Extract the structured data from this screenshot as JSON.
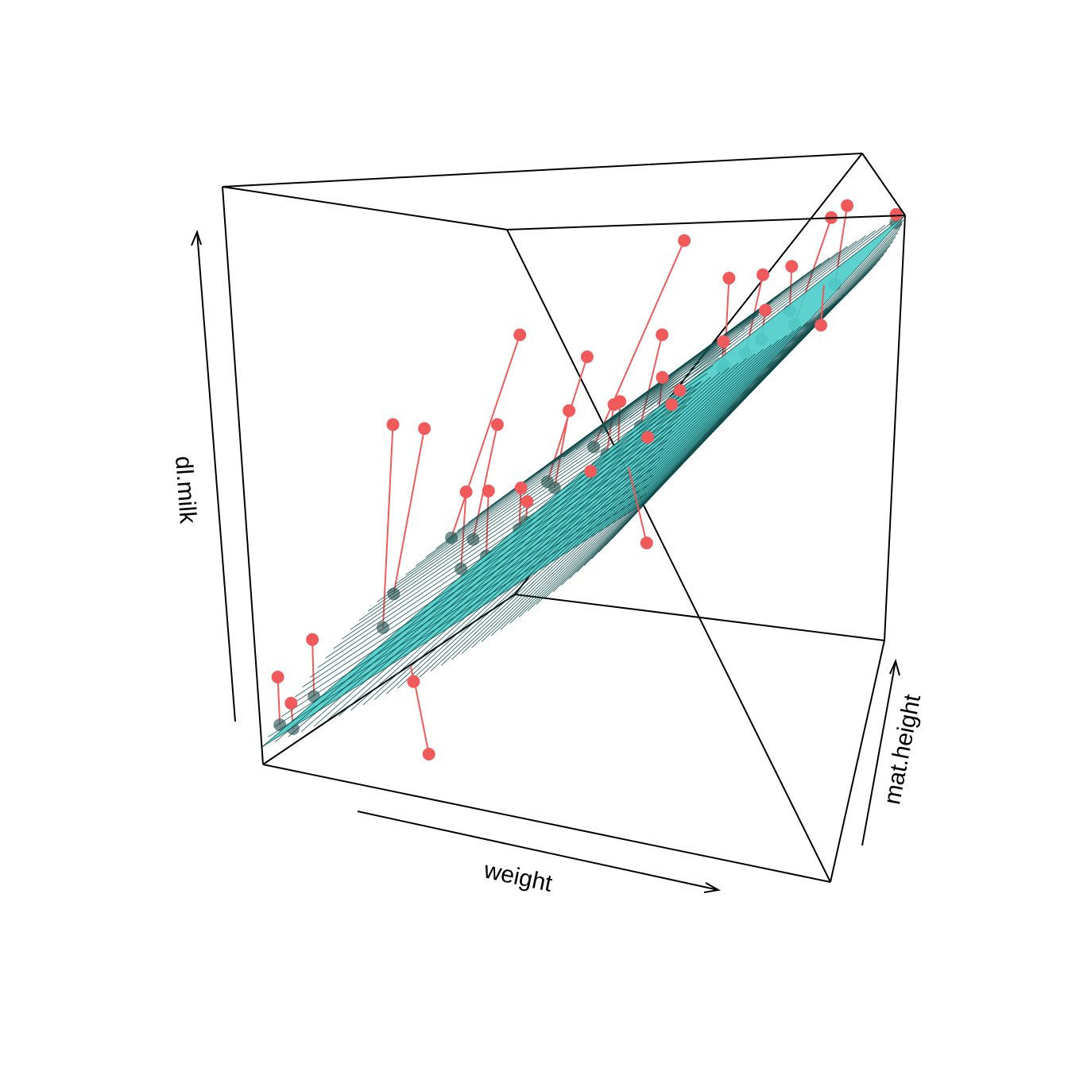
{
  "chart_data": {
    "type": "scatter",
    "subtype": "3d-scatter-with-regression-plane",
    "title": "",
    "xlabel": "weight",
    "ylabel": "mat.height",
    "zlabel": "dl.milk",
    "normalized_axes": true,
    "plane": {
      "a": 0.03,
      "bx": 0.55,
      "by": 0.42,
      "color": "#4ECDCA",
      "mesh_color": "#0E4A4A",
      "mesh_divisions": 40
    },
    "point_color": "#F15A5A",
    "shadow_color": "#4A6E6A",
    "points": [
      {
        "x": 0.98,
        "y": 0.98,
        "z": 1.0
      },
      {
        "x": 0.74,
        "y": 0.9,
        "z": 0.99
      },
      {
        "x": 0.5,
        "y": 0.92,
        "z": 0.93
      },
      {
        "x": 0.76,
        "y": 0.78,
        "z": 0.87
      },
      {
        "x": 0.63,
        "y": 0.68,
        "z": 0.84
      },
      {
        "x": 0.52,
        "y": 0.8,
        "z": 0.82
      },
      {
        "x": 0.62,
        "y": 0.78,
        "z": 0.76
      },
      {
        "x": 0.13,
        "y": 0.75,
        "z": 0.85
      },
      {
        "x": 0.34,
        "y": 0.68,
        "z": 0.69
      },
      {
        "x": 0.62,
        "y": 0.68,
        "z": 0.71
      },
      {
        "x": 0.15,
        "y": 0.63,
        "z": 0.63
      },
      {
        "x": 0.47,
        "y": 0.62,
        "z": 0.63
      },
      {
        "x": 0.57,
        "y": 0.6,
        "z": 0.62
      },
      {
        "x": 0.62,
        "y": 0.54,
        "z": 0.61
      },
      {
        "x": 0.36,
        "y": 0.58,
        "z": 0.57
      },
      {
        "x": 0.46,
        "y": 0.52,
        "z": 0.6
      },
      {
        "x": 0.58,
        "y": 0.5,
        "z": 0.55
      },
      {
        "x": 0.25,
        "y": 0.55,
        "z": 0.55
      },
      {
        "x": 0.01,
        "y": 0.55,
        "z": 0.67
      },
      {
        "x": 0.12,
        "y": 0.48,
        "z": 0.52
      },
      {
        "x": 0.03,
        "y": 0.38,
        "z": 0.52
      },
      {
        "x": 0.26,
        "y": 0.35,
        "z": 0.44
      },
      {
        "x": 0.3,
        "y": 0.4,
        "z": 0.44
      },
      {
        "x": 0.3,
        "y": 0.42,
        "z": 0.41
      },
      {
        "x": 0.2,
        "y": 0.35,
        "z": 0.43
      },
      {
        "x": 0.1,
        "y": 0.25,
        "z": 0.56
      },
      {
        "x": 0.45,
        "y": 0.45,
        "z": 0.48
      },
      {
        "x": 0.72,
        "y": 0.3,
        "z": 0.42
      },
      {
        "x": 0.8,
        "y": 0.85,
        "z": 0.74
      },
      {
        "x": 0.05,
        "y": 0.1,
        "z": 0.2
      },
      {
        "x": 0.01,
        "y": 0.05,
        "z": 0.14
      },
      {
        "x": 0.28,
        "y": 0.05,
        "z": 0.18
      },
      {
        "x": 0.3,
        "y": 0.02,
        "z": 0.07
      },
      {
        "x": 0.05,
        "y": 0.02,
        "z": 0.11
      }
    ]
  }
}
